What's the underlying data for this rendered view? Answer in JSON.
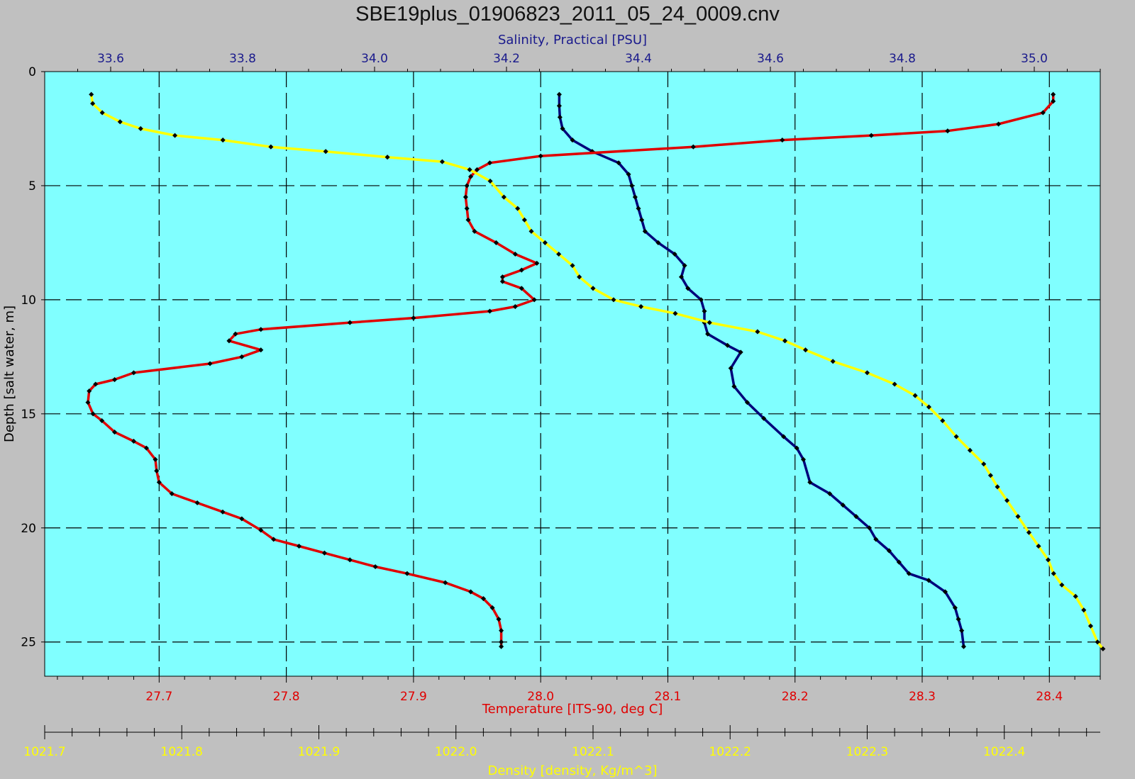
{
  "title": "SBE19plus_01906823_2011_05_24_0009.cnv",
  "colors": {
    "background": "#c0c0c0",
    "plot_area": "#80ffff",
    "salinity": "#00007a",
    "temperature": "#e00000",
    "density": "#ffff00",
    "salinity_label": "#1a1a8c",
    "temperature_label": "#e00000",
    "density_label": "#ffff00"
  },
  "chart_data": {
    "type": "line",
    "title": "SBE19plus_01906823_2011_05_24_0009.cnv",
    "grid": true,
    "y_axis": {
      "label": "Depth [salt water, m]",
      "range": [
        0,
        26.5
      ],
      "inverted": true,
      "ticks": [
        "0",
        "5",
        "10",
        "15",
        "20",
        "25"
      ]
    },
    "x_axes": {
      "salinity": {
        "label": "Salinity, Practical [PSU]",
        "position": "top",
        "range": [
          33.5,
          35.1
        ],
        "ticks": [
          "33.6",
          "33.8",
          "34.0",
          "34.2",
          "34.4",
          "34.6",
          "34.8",
          "35.0"
        ]
      },
      "temperature": {
        "label": "Temperature [ITS-90, deg C]",
        "position": "bottom",
        "range": [
          27.61,
          28.44
        ],
        "ticks": [
          "27.7",
          "27.8",
          "27.9",
          "28.0",
          "28.1",
          "28.2",
          "28.3",
          "28.4"
        ]
      },
      "density": {
        "label": "Density [density, Kg/m^3]",
        "position": "bottom-secondary",
        "range": [
          1021.7,
          1022.47
        ],
        "ticks": [
          "1021.7",
          "1021.8",
          "1021.9",
          "1022.0",
          "1022.1",
          "1022.2",
          "1022.3",
          "1022.4"
        ]
      }
    },
    "series": [
      {
        "name": "Salinity, Practical [PSU]",
        "axis": "salinity",
        "color": "#00007a",
        "points": [
          [
            34.28,
            1.0
          ],
          [
            34.28,
            1.5
          ],
          [
            34.281,
            2.0
          ],
          [
            34.285,
            2.5
          ],
          [
            34.3,
            3.0
          ],
          [
            34.33,
            3.5
          ],
          [
            34.37,
            4.0
          ],
          [
            34.385,
            4.5
          ],
          [
            34.39,
            5.0
          ],
          [
            34.395,
            5.5
          ],
          [
            34.4,
            6.0
          ],
          [
            34.405,
            6.5
          ],
          [
            34.41,
            7.0
          ],
          [
            34.43,
            7.5
          ],
          [
            34.455,
            8.0
          ],
          [
            34.47,
            8.5
          ],
          [
            34.465,
            9.0
          ],
          [
            34.475,
            9.5
          ],
          [
            34.495,
            10.0
          ],
          [
            34.5,
            10.5
          ],
          [
            34.5,
            11.0
          ],
          [
            34.505,
            11.5
          ],
          [
            34.535,
            12.0
          ],
          [
            34.555,
            12.3
          ],
          [
            34.54,
            13.0
          ],
          [
            34.545,
            13.8
          ],
          [
            34.565,
            14.5
          ],
          [
            34.59,
            15.2
          ],
          [
            34.62,
            16.0
          ],
          [
            34.64,
            16.5
          ],
          [
            34.65,
            17.0
          ],
          [
            34.66,
            18.0
          ],
          [
            34.69,
            18.5
          ],
          [
            34.71,
            19.0
          ],
          [
            34.73,
            19.5
          ],
          [
            34.75,
            20.0
          ],
          [
            34.76,
            20.5
          ],
          [
            34.78,
            21.0
          ],
          [
            34.795,
            21.5
          ],
          [
            34.81,
            22.0
          ],
          [
            34.84,
            22.3
          ],
          [
            34.865,
            22.8
          ],
          [
            34.88,
            23.5
          ],
          [
            34.885,
            24.0
          ],
          [
            34.89,
            24.5
          ],
          [
            34.893,
            25.2
          ]
        ]
      },
      {
        "name": "Temperature [ITS-90, deg C]",
        "axis": "temperature",
        "color": "#e00000",
        "points": [
          [
            28.403,
            1.0
          ],
          [
            28.403,
            1.3
          ],
          [
            28.395,
            1.8
          ],
          [
            28.36,
            2.3
          ],
          [
            28.32,
            2.6
          ],
          [
            28.26,
            2.8
          ],
          [
            28.19,
            3.0
          ],
          [
            28.12,
            3.3
          ],
          [
            28.0,
            3.7
          ],
          [
            27.96,
            4.0
          ],
          [
            27.95,
            4.3
          ],
          [
            27.945,
            4.6
          ],
          [
            27.942,
            5.0
          ],
          [
            27.941,
            5.5
          ],
          [
            27.942,
            6.0
          ],
          [
            27.943,
            6.5
          ],
          [
            27.948,
            7.0
          ],
          [
            27.965,
            7.5
          ],
          [
            27.98,
            8.0
          ],
          [
            27.997,
            8.4
          ],
          [
            27.985,
            8.7
          ],
          [
            27.97,
            9.0
          ],
          [
            27.97,
            9.2
          ],
          [
            27.985,
            9.5
          ],
          [
            27.995,
            10.0
          ],
          [
            27.98,
            10.3
          ],
          [
            27.96,
            10.5
          ],
          [
            27.9,
            10.8
          ],
          [
            27.85,
            11.0
          ],
          [
            27.78,
            11.3
          ],
          [
            27.76,
            11.5
          ],
          [
            27.755,
            11.8
          ],
          [
            27.78,
            12.2
          ],
          [
            27.765,
            12.5
          ],
          [
            27.74,
            12.8
          ],
          [
            27.68,
            13.2
          ],
          [
            27.665,
            13.5
          ],
          [
            27.65,
            13.7
          ],
          [
            27.645,
            14.0
          ],
          [
            27.644,
            14.5
          ],
          [
            27.648,
            15.0
          ],
          [
            27.655,
            15.3
          ],
          [
            27.665,
            15.8
          ],
          [
            27.68,
            16.2
          ],
          [
            27.69,
            16.5
          ],
          [
            27.697,
            17.0
          ],
          [
            27.698,
            17.5
          ],
          [
            27.7,
            18.0
          ],
          [
            27.71,
            18.5
          ],
          [
            27.73,
            18.9
          ],
          [
            27.75,
            19.3
          ],
          [
            27.765,
            19.6
          ],
          [
            27.78,
            20.1
          ],
          [
            27.79,
            20.5
          ],
          [
            27.81,
            20.8
          ],
          [
            27.83,
            21.1
          ],
          [
            27.85,
            21.4
          ],
          [
            27.87,
            21.7
          ],
          [
            27.895,
            22.0
          ],
          [
            27.925,
            22.4
          ],
          [
            27.945,
            22.8
          ],
          [
            27.955,
            23.1
          ],
          [
            27.962,
            23.5
          ],
          [
            27.967,
            24.0
          ],
          [
            27.969,
            24.5
          ],
          [
            27.969,
            25.0
          ],
          [
            27.969,
            25.2
          ]
        ]
      },
      {
        "name": "Density [density, Kg/m^3]",
        "axis": "density",
        "color": "#ffff00",
        "points": [
          [
            1021.734,
            1.0
          ],
          [
            1021.735,
            1.4
          ],
          [
            1021.742,
            1.8
          ],
          [
            1021.755,
            2.2
          ],
          [
            1021.77,
            2.5
          ],
          [
            1021.795,
            2.8
          ],
          [
            1021.83,
            3.0
          ],
          [
            1021.865,
            3.3
          ],
          [
            1021.905,
            3.5
          ],
          [
            1021.95,
            3.75
          ],
          [
            1021.99,
            3.95
          ],
          [
            1022.01,
            4.3
          ],
          [
            1022.025,
            4.8
          ],
          [
            1022.035,
            5.5
          ],
          [
            1022.045,
            6.0
          ],
          [
            1022.05,
            6.5
          ],
          [
            1022.055,
            7.0
          ],
          [
            1022.065,
            7.5
          ],
          [
            1022.075,
            8.0
          ],
          [
            1022.085,
            8.5
          ],
          [
            1022.09,
            9.0
          ],
          [
            1022.1,
            9.5
          ],
          [
            1022.115,
            10.0
          ],
          [
            1022.135,
            10.3
          ],
          [
            1022.16,
            10.6
          ],
          [
            1022.185,
            11.0
          ],
          [
            1022.22,
            11.4
          ],
          [
            1022.24,
            11.8
          ],
          [
            1022.255,
            12.2
          ],
          [
            1022.275,
            12.7
          ],
          [
            1022.3,
            13.2
          ],
          [
            1022.32,
            13.7
          ],
          [
            1022.335,
            14.2
          ],
          [
            1022.345,
            14.7
          ],
          [
            1022.355,
            15.3
          ],
          [
            1022.365,
            16.0
          ],
          [
            1022.375,
            16.6
          ],
          [
            1022.385,
            17.2
          ],
          [
            1022.39,
            17.7
          ],
          [
            1022.395,
            18.2
          ],
          [
            1022.402,
            18.8
          ],
          [
            1022.41,
            19.5
          ],
          [
            1022.418,
            20.2
          ],
          [
            1022.425,
            20.8
          ],
          [
            1022.432,
            21.4
          ],
          [
            1022.436,
            22.0
          ],
          [
            1022.442,
            22.5
          ],
          [
            1022.452,
            23.0
          ],
          [
            1022.458,
            23.6
          ],
          [
            1022.463,
            24.3
          ],
          [
            1022.468,
            25.0
          ],
          [
            1022.472,
            25.3
          ]
        ]
      }
    ]
  }
}
